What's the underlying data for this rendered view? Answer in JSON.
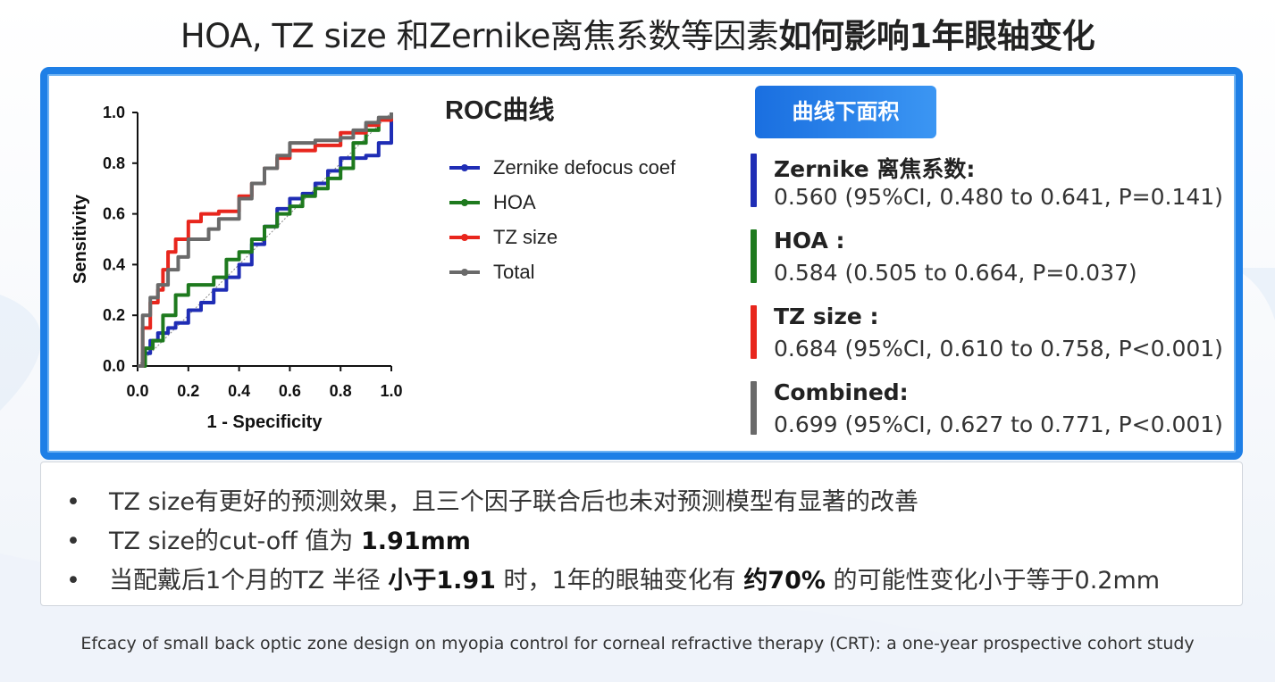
{
  "title": {
    "main": "HOA, TZ size 和Zernike离焦系数等因素",
    "bold": "如何影响1年眼轴变化"
  },
  "chart_data": {
    "type": "line",
    "title": "ROC曲线",
    "xlabel": "1 - Specificity",
    "ylabel": "Sensitivity",
    "xlim": [
      0,
      1
    ],
    "ylim": [
      0,
      1
    ],
    "xticks": [
      "0.0",
      "0.2",
      "0.4",
      "0.6",
      "0.8",
      "1.0"
    ],
    "yticks": [
      "0.0",
      "0.2",
      "0.4",
      "0.6",
      "0.8",
      "1.0"
    ],
    "legend_position": "right",
    "series": [
      {
        "name": "Zernike defocus coef",
        "color": "#1f2db5",
        "points": [
          [
            0,
            0
          ],
          [
            0.02,
            0.05
          ],
          [
            0.05,
            0.1
          ],
          [
            0.08,
            0.13
          ],
          [
            0.12,
            0.15
          ],
          [
            0.15,
            0.17
          ],
          [
            0.2,
            0.22
          ],
          [
            0.25,
            0.25
          ],
          [
            0.3,
            0.3
          ],
          [
            0.35,
            0.35
          ],
          [
            0.4,
            0.4
          ],
          [
            0.45,
            0.48
          ],
          [
            0.5,
            0.55
          ],
          [
            0.55,
            0.62
          ],
          [
            0.6,
            0.66
          ],
          [
            0.65,
            0.68
          ],
          [
            0.7,
            0.72
          ],
          [
            0.75,
            0.77
          ],
          [
            0.8,
            0.82
          ],
          [
            0.85,
            0.82
          ],
          [
            0.9,
            0.83
          ],
          [
            0.95,
            0.88
          ],
          [
            1,
            1
          ]
        ]
      },
      {
        "name": "HOA",
        "color": "#1e7a1e",
        "points": [
          [
            0,
            0
          ],
          [
            0.03,
            0.07
          ],
          [
            0.06,
            0.1
          ],
          [
            0.1,
            0.2
          ],
          [
            0.15,
            0.28
          ],
          [
            0.2,
            0.32
          ],
          [
            0.3,
            0.35
          ],
          [
            0.35,
            0.42
          ],
          [
            0.4,
            0.45
          ],
          [
            0.45,
            0.5
          ],
          [
            0.5,
            0.55
          ],
          [
            0.55,
            0.6
          ],
          [
            0.6,
            0.63
          ],
          [
            0.65,
            0.67
          ],
          [
            0.7,
            0.7
          ],
          [
            0.75,
            0.74
          ],
          [
            0.8,
            0.78
          ],
          [
            0.85,
            0.88
          ],
          [
            0.9,
            0.93
          ],
          [
            0.95,
            0.97
          ],
          [
            1,
            1
          ]
        ]
      },
      {
        "name": "TZ size",
        "color": "#e8261d",
        "points": [
          [
            0,
            0
          ],
          [
            0.02,
            0.15
          ],
          [
            0.05,
            0.25
          ],
          [
            0.08,
            0.3
          ],
          [
            0.1,
            0.38
          ],
          [
            0.12,
            0.45
          ],
          [
            0.15,
            0.5
          ],
          [
            0.2,
            0.57
          ],
          [
            0.25,
            0.6
          ],
          [
            0.32,
            0.61
          ],
          [
            0.4,
            0.67
          ],
          [
            0.45,
            0.72
          ],
          [
            0.5,
            0.78
          ],
          [
            0.55,
            0.82
          ],
          [
            0.6,
            0.85
          ],
          [
            0.7,
            0.87
          ],
          [
            0.8,
            0.92
          ],
          [
            0.85,
            0.92
          ],
          [
            0.9,
            0.95
          ],
          [
            0.95,
            0.97
          ],
          [
            1,
            0.99
          ]
        ]
      },
      {
        "name": "Total",
        "color": "#6a6a6a",
        "points": [
          [
            0,
            0
          ],
          [
            0.02,
            0.2
          ],
          [
            0.05,
            0.27
          ],
          [
            0.08,
            0.32
          ],
          [
            0.12,
            0.38
          ],
          [
            0.16,
            0.43
          ],
          [
            0.2,
            0.5
          ],
          [
            0.28,
            0.54
          ],
          [
            0.32,
            0.58
          ],
          [
            0.4,
            0.66
          ],
          [
            0.45,
            0.72
          ],
          [
            0.5,
            0.78
          ],
          [
            0.55,
            0.83
          ],
          [
            0.6,
            0.88
          ],
          [
            0.7,
            0.89
          ],
          [
            0.8,
            0.9
          ],
          [
            0.85,
            0.93
          ],
          [
            0.9,
            0.96
          ],
          [
            0.95,
            0.98
          ],
          [
            1,
            1
          ]
        ]
      }
    ],
    "reference_line": true
  },
  "auc": {
    "tab_label": "曲线下面积",
    "items": [
      {
        "name": "Zernike 离焦系数:",
        "value": "0.560 (95%CI, 0.480 to 0.641, P=0.141)",
        "color": "#1f2db5"
      },
      {
        "name": "HOA :",
        "value": "0.584 (0.505 to 0.664, P=0.037)",
        "color": "#1e7a1e"
      },
      {
        "name": "TZ size :",
        "value": "0.684 (95%CI, 0.610 to 0.758, P<0.001)",
        "color": "#e8261d"
      },
      {
        "name": "Combined:",
        "value": "0.699 (95%CI, 0.627 to 0.771, P<0.001)",
        "color": "#6a6a6a"
      }
    ]
  },
  "notes": {
    "bullet": "•",
    "n1": "TZ size有更好的预测效果，且三个因子联合后也未对预测模型有显著的改善",
    "n2_a": "TZ size的cut-off 值为 ",
    "n2_b": "1.91mm",
    "n3_a": "当配戴后1个月的TZ 半径 ",
    "n3_b": "小于1.91",
    "n3_c": " 时，1年的眼轴变化有 ",
    "n3_d": "约70%",
    "n3_e": " 的可能性变化小于等于0.2mm"
  },
  "footer": "Efcacy of small back optic zone design on myopia control for corneal refractive therapy (CRT): a one-year prospective cohort study"
}
